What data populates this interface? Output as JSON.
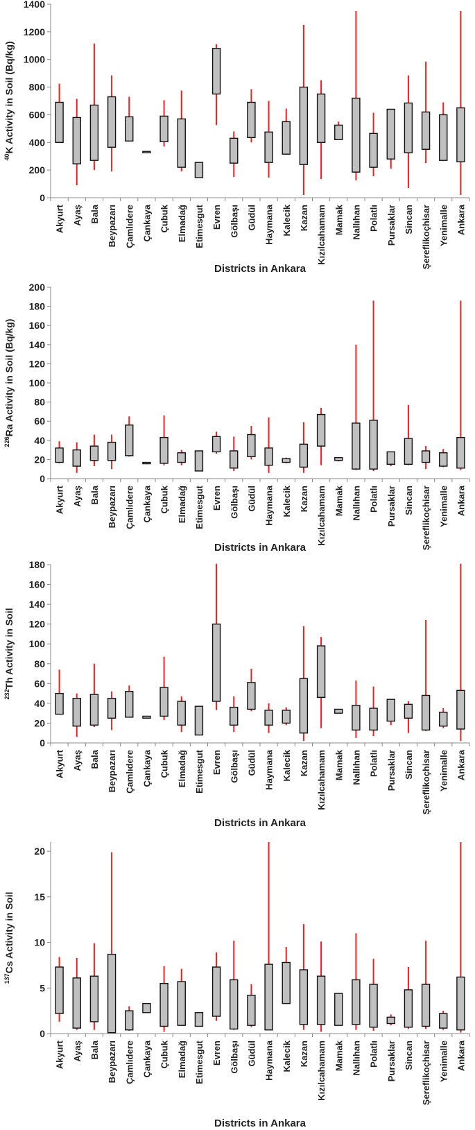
{
  "chart_data": [
    {
      "type": "box",
      "ylabel_sup": "40",
      "ylabel_elem": "K",
      "ylabel_rest": " Activity in Soil (Bq/kg)",
      "xlabel": "Districts in Ankara",
      "ylim": [
        0,
        1400
      ],
      "yticks": [
        0,
        200,
        400,
        600,
        800,
        1000,
        1200,
        1400
      ],
      "categories": [
        "Akyurt",
        "Ayaş",
        "Bala",
        "Beypazarı",
        "Çamlıdere",
        "Çankaya",
        "Çubuk",
        "Elmadağ",
        "Etimesgut",
        "Evren",
        "Gölbaşı",
        "Güdül",
        "Haymana",
        "Kalecik",
        "Kazan",
        "Kızılcahamam",
        "Mamak",
        "Nallıhan",
        "Polatlı",
        "Pursaklar",
        "Sincan",
        "Şereflikoçhisar",
        "Yenimalle",
        "Ankara"
      ],
      "min": [
        400,
        90,
        200,
        190,
        410,
        330,
        370,
        190,
        145,
        525,
        150,
        400,
        145,
        310,
        20,
        135,
        420,
        125,
        155,
        210,
        70,
        250,
        265,
        20
      ],
      "q1": [
        400,
        245,
        270,
        365,
        410,
        325,
        405,
        220,
        145,
        750,
        250,
        435,
        255,
        315,
        240,
        400,
        420,
        185,
        220,
        280,
        325,
        350,
        270,
        260
      ],
      "q3": [
        690,
        580,
        670,
        730,
        585,
        335,
        590,
        570,
        255,
        1080,
        430,
        690,
        475,
        550,
        800,
        750,
        525,
        720,
        465,
        640,
        685,
        620,
        600,
        650
      ],
      "max": [
        825,
        715,
        1115,
        885,
        730,
        330,
        705,
        775,
        255,
        1110,
        480,
        785,
        700,
        645,
        1250,
        850,
        550,
        1350,
        615,
        640,
        885,
        985,
        690,
        1350
      ]
    },
    {
      "type": "box",
      "ylabel_sup": "226",
      "ylabel_elem": "Ra",
      "ylabel_rest": " Activity in Soil (Bq/kg)",
      "xlabel": "Districts in Ankara",
      "ylim": [
        0,
        200
      ],
      "yticks": [
        0,
        20,
        40,
        60,
        80,
        100,
        120,
        140,
        160,
        180,
        200
      ],
      "categories": [
        "Akyurt",
        "Ayaş",
        "Bala",
        "Beypazarı",
        "Çamlıdere",
        "Çankaya",
        "Çubuk",
        "Elmadağ",
        "Etimesgut",
        "Evren",
        "Gölbaşı",
        "Güdül",
        "Haymana",
        "Kalecik",
        "Kazan",
        "Kızılcahamam",
        "Mamak",
        "Nallıhan",
        "Polatlı",
        "Pursaklar",
        "Sincan",
        "Şereflikoçhisar",
        "Yenimalle",
        "Ankara"
      ],
      "min": [
        16,
        6,
        13,
        10,
        23,
        15,
        14,
        14,
        8,
        26,
        8,
        20,
        6,
        16,
        6,
        14,
        18,
        9,
        8,
        13,
        14,
        10,
        12,
        9
      ],
      "q1": [
        17,
        13,
        19,
        19,
        24,
        16,
        16,
        17,
        8,
        28,
        11,
        23,
        14,
        17,
        12,
        34,
        19,
        10,
        10,
        15,
        15,
        17,
        13,
        11
      ],
      "q3": [
        32,
        30,
        34,
        38,
        56,
        17,
        43,
        27,
        29,
        44,
        29,
        46,
        32,
        21,
        36,
        67,
        22,
        58,
        61,
        28,
        42,
        29,
        27,
        43
      ],
      "max": [
        39,
        38,
        46,
        46,
        65,
        16,
        66,
        30,
        29,
        49,
        44,
        55,
        64,
        22,
        59,
        74,
        22,
        140,
        186,
        28,
        77,
        34,
        31,
        186
      ]
    },
    {
      "type": "box",
      "ylabel_sup": "232",
      "ylabel_elem": "Th",
      "ylabel_rest": " Activity in Soil",
      "xlabel": "Districts in Ankara",
      "ylim": [
        0,
        180
      ],
      "yticks": [
        0,
        20,
        40,
        60,
        80,
        100,
        120,
        140,
        160,
        180
      ],
      "categories": [
        "Akyurt",
        "Ayaş",
        "Bala",
        "Beypazarı",
        "Çamlıdere",
        "Çankaya",
        "Çubuk",
        "Elmadağ",
        "Etimesgut",
        "Evren",
        "Gölbaşı",
        "Güdül",
        "Haymana",
        "Kalecik",
        "Kazan",
        "Kızılcahamam",
        "Mamak",
        "Nallıhan",
        "Polatlı",
        "Pursaklar",
        "Sincan",
        "Şereflikoçhisar",
        "Yenimalle",
        "Ankara"
      ],
      "min": [
        29,
        6,
        16,
        13,
        26,
        25,
        23,
        11,
        8,
        33,
        11,
        32,
        10,
        18,
        2,
        15,
        30,
        5,
        7,
        18,
        10,
        12,
        15,
        2
      ],
      "q1": [
        29,
        17,
        18,
        25,
        26,
        25,
        27,
        18,
        8,
        42,
        18,
        34,
        18,
        20,
        10,
        46,
        30,
        13,
        13,
        22,
        25,
        13,
        17,
        14
      ],
      "q3": [
        50,
        45,
        49,
        45,
        52,
        27,
        56,
        42,
        37,
        120,
        36,
        61,
        33,
        33,
        65,
        98,
        34,
        38,
        35,
        44,
        39,
        48,
        31,
        53
      ],
      "max": [
        74,
        50,
        80,
        52,
        58,
        27,
        87,
        47,
        37,
        181,
        47,
        75,
        40,
        36,
        118,
        107,
        34,
        63,
        57,
        44,
        42,
        124,
        35,
        181
      ]
    },
    {
      "type": "box",
      "ylabel_sup": "137",
      "ylabel_elem": "Cs",
      "ylabel_rest": " Activity in Soil",
      "xlabel": "Districts in Ankara",
      "ylim": [
        0,
        21
      ],
      "yticks": [
        0,
        5,
        10,
        15,
        20
      ],
      "categories": [
        "Akyurt",
        "Ayaş",
        "Bala",
        "Beypazarı",
        "Çamlıdere",
        "Çankaya",
        "Çubuk",
        "Elmadağ",
        "Etimesgut",
        "Evren",
        "Gölbaşı",
        "Güdül",
        "Haymana",
        "Kalecik",
        "Kazan",
        "Kızılcahamam",
        "Mamak",
        "Nallıhan",
        "Polatlı",
        "Pursaklar",
        "Sincan",
        "Şereflikoçhisar",
        "Yenimalle",
        "Ankara"
      ],
      "min": [
        1.3,
        0.4,
        0.4,
        0.1,
        0.3,
        2.3,
        0.2,
        0.9,
        0.8,
        1.4,
        0.4,
        0.7,
        0.4,
        3.3,
        0.4,
        0.2,
        0.9,
        0.4,
        0.3,
        0.9,
        0.5,
        0.5,
        0.4,
        0.1
      ],
      "q1": [
        2.2,
        0.6,
        1.3,
        0.1,
        0.4,
        2.3,
        0.8,
        0.9,
        0.8,
        1.9,
        0.5,
        0.9,
        0.4,
        3.3,
        1.0,
        1.0,
        0.9,
        1.0,
        0.7,
        1.1,
        0.7,
        0.8,
        0.6,
        0.4
      ],
      "q3": [
        7.3,
        6.1,
        6.3,
        8.7,
        2.5,
        3.3,
        5.5,
        5.7,
        2.3,
        7.3,
        5.9,
        4.2,
        7.6,
        7.8,
        7.0,
        6.3,
        4.4,
        5.9,
        5.4,
        1.8,
        4.8,
        5.4,
        2.2,
        6.2
      ],
      "max": [
        8.4,
        8.3,
        9.9,
        19.9,
        3.0,
        3.3,
        7.4,
        7.1,
        2.3,
        8.9,
        10.2,
        5.4,
        21.0,
        9.5,
        12.0,
        10.1,
        4.4,
        11.0,
        8.2,
        2.1,
        7.3,
        10.2,
        2.5,
        21.0
      ]
    }
  ]
}
